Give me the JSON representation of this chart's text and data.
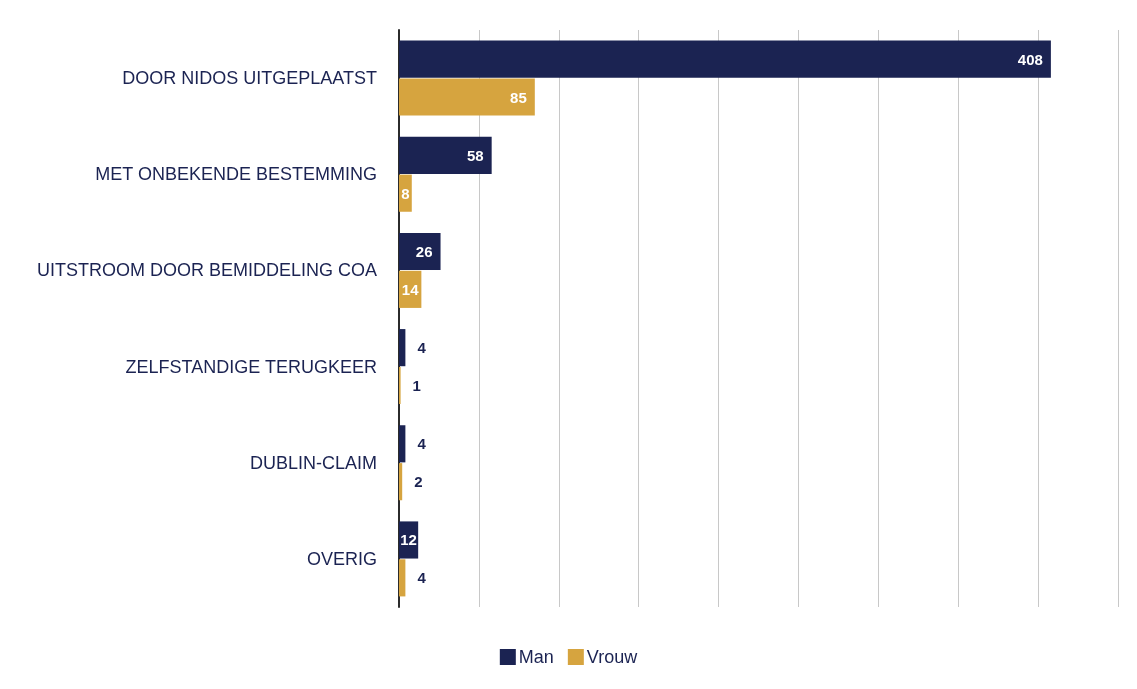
{
  "chart_data": {
    "type": "bar",
    "orientation": "horizontal",
    "categories": [
      "DOOR NIDOS UITGEPLAATST",
      "MET ONBEKENDE BESTEMMING",
      "UITSTROOM DOOR BEMIDDELING COA",
      "ZELFSTANDIGE TERUGKEER",
      "DUBLIN-CLAIM",
      "OVERIG"
    ],
    "series": [
      {
        "name": "Man",
        "color": "#1b2352",
        "values": [
          408,
          58,
          26,
          4,
          4,
          12
        ]
      },
      {
        "name": "Vrouw",
        "color": "#d6a43f",
        "values": [
          85,
          8,
          14,
          1,
          2,
          4
        ]
      }
    ],
    "xlim": [
      0,
      450
    ],
    "xticks": [
      {
        "value": 0,
        "label": null
      },
      {
        "value": 50,
        "label": null
      },
      {
        "value": 100,
        "label": null
      },
      {
        "value": 150,
        "label": null
      },
      {
        "value": 200,
        "label": null
      },
      {
        "value": 250,
        "label": null
      },
      {
        "value": 300,
        "label": null
      },
      {
        "value": 350,
        "label": null
      },
      {
        "value": 400,
        "label": null
      },
      {
        "value": 450,
        "label": null
      }
    ],
    "grid": "x",
    "legend": "bottom",
    "data_labels": true,
    "tick_labels": "y"
  }
}
